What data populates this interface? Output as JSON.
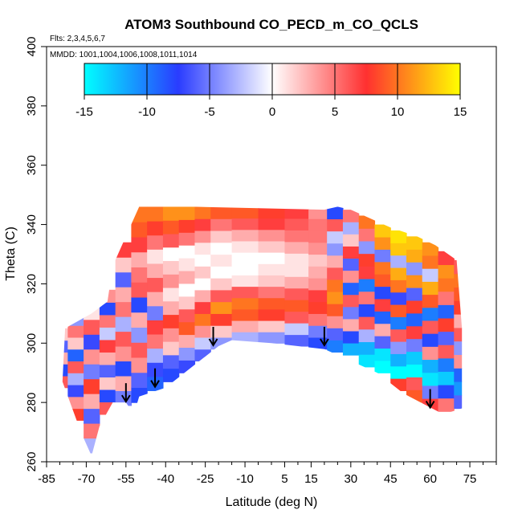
{
  "chart_data": {
    "type": "heatmap",
    "title": "ATOM3 Southbound CO_PECD_m_CO_QCLS",
    "subtitle": "Flts: 2,3,4,5,6,7",
    "annotation": "MMDD: 1001,1004,1006,1008,1011,1014",
    "xlabel": "Latitude (deg N)",
    "ylabel": "Theta (C)",
    "xlim": [
      -85,
      85
    ],
    "ylim": [
      260,
      400
    ],
    "x_ticks": [
      "-85",
      "-70",
      "-55",
      "-40",
      "-25",
      "-10",
      "5",
      "15",
      "30",
      "45",
      "60",
      "75"
    ],
    "y_ticks": [
      "260",
      "280",
      "300",
      "320",
      "340",
      "360",
      "380",
      "400"
    ],
    "colorbar": {
      "range": [
        -15,
        15
      ],
      "ticks": [
        "-15",
        "-10",
        "-5",
        "0",
        "5",
        "10",
        "15"
      ],
      "colors": [
        "#00ffff",
        "#2a3cff",
        "#ffffff",
        "#ff3030",
        "#ffff00"
      ]
    },
    "arrows_lat": [
      -55,
      -44,
      -22,
      20,
      60
    ],
    "domain_outline": [
      [
        -79,
        287
      ],
      [
        -78,
        305
      ],
      [
        -68,
        310
      ],
      [
        -62,
        314
      ],
      [
        -60,
        326
      ],
      [
        -55,
        336
      ],
      [
        -50,
        346
      ],
      [
        -30,
        346
      ],
      [
        -5,
        345.5
      ],
      [
        20,
        345
      ],
      [
        25,
        346
      ],
      [
        30,
        345
      ],
      [
        45,
        339
      ],
      [
        55,
        336
      ],
      [
        62,
        333
      ],
      [
        70,
        328
      ],
      [
        72,
        305
      ],
      [
        72,
        278
      ],
      [
        65,
        276
      ],
      [
        50,
        283
      ],
      [
        40,
        290
      ],
      [
        30,
        294
      ],
      [
        20,
        298
      ],
      [
        0,
        300
      ],
      [
        -15,
        301
      ],
      [
        -20,
        299
      ],
      [
        -30,
        292
      ],
      [
        -40,
        285
      ],
      [
        -50,
        282
      ],
      [
        -52,
        276
      ],
      [
        -55,
        280
      ],
      [
        -60,
        280
      ],
      [
        -65,
        272
      ],
      [
        -68,
        262
      ],
      [
        -72,
        270
      ]
    ],
    "sections": [
      {
        "lat": -80,
        "theta_min": 285,
        "theta_max": 305,
        "values": [
          6,
          -8,
          3,
          -6,
          2
        ]
      },
      {
        "lat": -74,
        "theta_min": 274,
        "theta_max": 310,
        "values": [
          8,
          4,
          -7,
          -3,
          6,
          -9,
          2,
          5,
          -4
        ]
      },
      {
        "lat": -68,
        "theta_min": 263,
        "theta_max": 313,
        "values": [
          -3,
          5,
          -6,
          3,
          8,
          -5,
          4,
          -7,
          6,
          1
        ]
      },
      {
        "lat": -62,
        "theta_min": 276,
        "theta_max": 318,
        "values": [
          6,
          -8,
          2,
          -6,
          3,
          7,
          -2,
          5,
          -8,
          4
        ]
      },
      {
        "lat": -56,
        "theta_min": 279,
        "theta_max": 334,
        "values": [
          -5,
          3,
          -8,
          4,
          6,
          -3,
          5,
          3,
          -6,
          2,
          7
        ]
      },
      {
        "lat": -50,
        "theta_min": 280,
        "theta_max": 346,
        "values": [
          -8,
          -6,
          4,
          6,
          -4,
          3,
          -8,
          6,
          5,
          3,
          7,
          9,
          10
        ]
      },
      {
        "lat": -44,
        "theta_min": 284,
        "theta_max": 346,
        "values": [
          -9,
          -7,
          -3,
          5,
          7,
          -5,
          3,
          6,
          3,
          1,
          5,
          8,
          10
        ]
      },
      {
        "lat": -38,
        "theta_min": 287,
        "theta_max": 346,
        "values": [
          -8,
          -6,
          2,
          4,
          8,
          3,
          1,
          4,
          2,
          0,
          6,
          9,
          11
        ]
      },
      {
        "lat": -32,
        "theta_min": 290,
        "theta_max": 346,
        "values": [
          -7,
          -4,
          3,
          9,
          6,
          2,
          0,
          3,
          1,
          0,
          5,
          8,
          11
        ]
      },
      {
        "lat": -26,
        "theta_min": 294,
        "theta_max": 346,
        "values": [
          -6,
          -2,
          4,
          10,
          7,
          3,
          0,
          2,
          0,
          1,
          4,
          7,
          10
        ]
      },
      {
        "lat": -20,
        "theta_min": 298,
        "theta_max": 346,
        "values": [
          -4,
          2,
          8,
          11,
          6,
          2,
          0,
          1,
          0,
          2,
          5,
          9
        ]
      },
      {
        "lat": -10,
        "theta_min": 300,
        "theta_max": 346,
        "values": [
          -3,
          3,
          9,
          10,
          6,
          1,
          0,
          0,
          1,
          3,
          6,
          9
        ]
      },
      {
        "lat": 0,
        "theta_min": 300,
        "theta_max": 346,
        "values": [
          -4,
          2,
          8,
          9,
          5,
          2,
          1,
          0,
          2,
          4,
          7,
          8
        ]
      },
      {
        "lat": 10,
        "theta_min": 299,
        "theta_max": 346,
        "values": [
          -6,
          -2,
          6,
          9,
          6,
          3,
          1,
          1,
          3,
          5,
          6,
          7
        ]
      },
      {
        "lat": 18,
        "theta_min": 298,
        "theta_max": 346,
        "values": [
          -8,
          -5,
          5,
          8,
          7,
          4,
          3,
          2,
          4,
          5,
          5,
          4
        ]
      },
      {
        "lat": 24,
        "theta_min": 297,
        "theta_max": 346,
        "values": [
          -10,
          -6,
          4,
          9,
          11,
          10,
          6,
          3,
          -4,
          -2,
          6,
          -8
        ]
      },
      {
        "lat": 30,
        "theta_min": 296,
        "theta_max": 345,
        "values": [
          -12,
          -8,
          3,
          -5,
          6,
          -9,
          4,
          -6,
          7,
          2,
          -3,
          5
        ]
      },
      {
        "lat": 36,
        "theta_min": 292,
        "theta_max": 343,
        "values": [
          -14,
          -12,
          -3,
          6,
          -8,
          5,
          -10,
          7,
          8,
          -4,
          5,
          10
        ]
      },
      {
        "lat": 42,
        "theta_min": 290,
        "theta_max": 340,
        "values": [
          -15,
          -14,
          -6,
          3,
          -9,
          7,
          -8,
          9,
          10,
          -5,
          11,
          13
        ]
      },
      {
        "lat": 48,
        "theta_min": 284,
        "theta_max": 338,
        "values": [
          8,
          -15,
          -12,
          -4,
          6,
          -10,
          9,
          -7,
          10,
          12,
          -3,
          13,
          14
        ]
      },
      {
        "lat": 54,
        "theta_min": 280,
        "theta_max": 336,
        "values": [
          9,
          6,
          -15,
          -13,
          -5,
          7,
          -9,
          8,
          -6,
          11,
          -4,
          12,
          13
        ]
      },
      {
        "lat": 60,
        "theta_min": 277,
        "theta_max": 334,
        "values": [
          7,
          -5,
          -14,
          -12,
          4,
          -8,
          6,
          -10,
          9,
          12,
          -2,
          10,
          11
        ]
      },
      {
        "lat": 66,
        "theta_min": 277,
        "theta_max": 331,
        "values": [
          5,
          -8,
          -13,
          -10,
          6,
          -6,
          8,
          -9,
          5,
          10,
          11,
          7
        ]
      },
      {
        "lat": 72,
        "theta_min": 278,
        "theta_max": 328,
        "values": [
          -6,
          -11,
          -9,
          4,
          -4,
          6,
          3,
          8,
          9,
          10,
          6
        ]
      }
    ]
  }
}
